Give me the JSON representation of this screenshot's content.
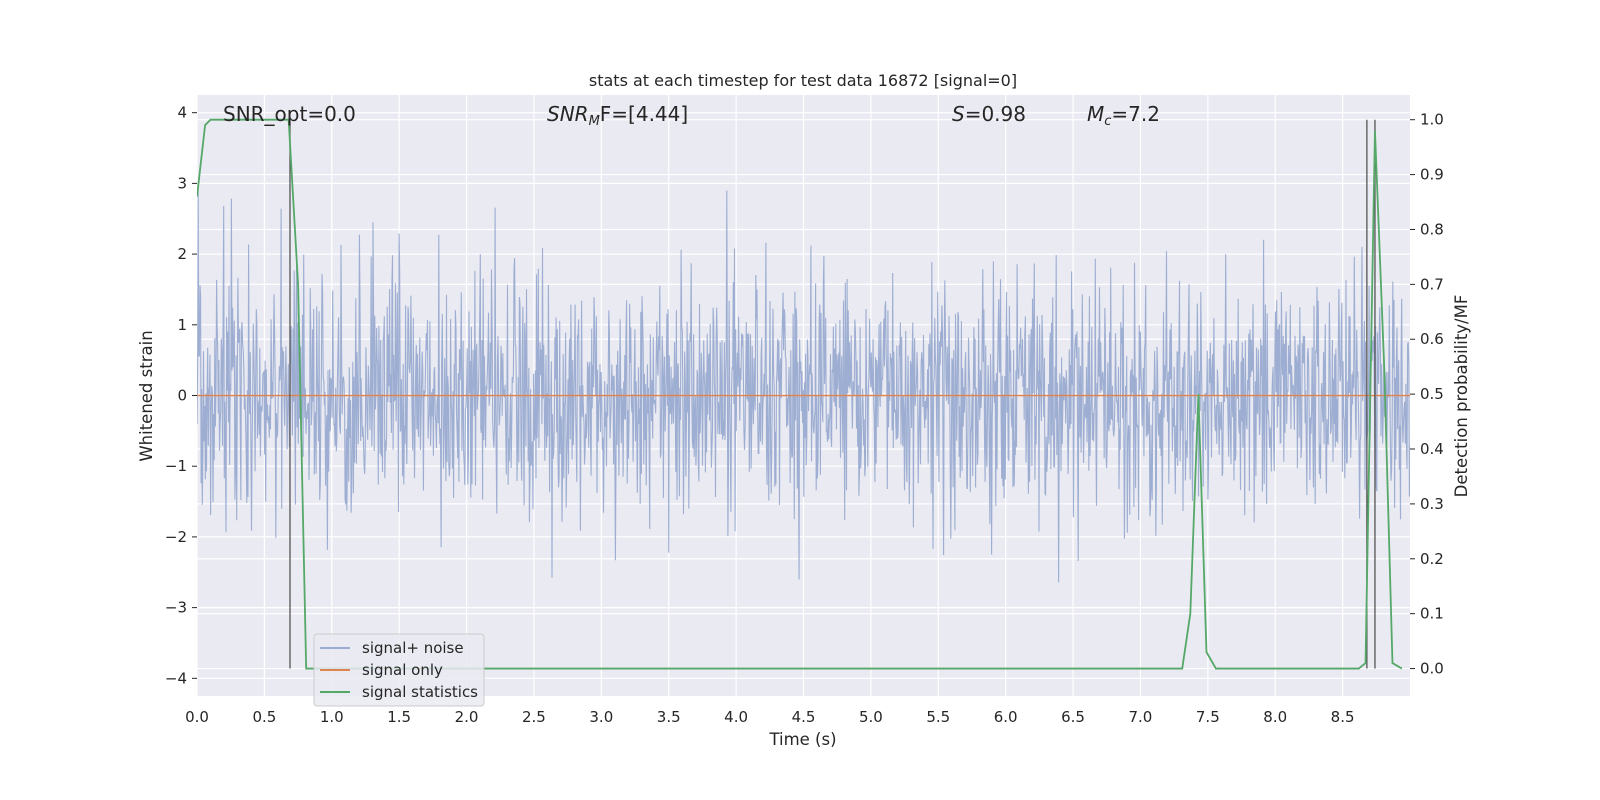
{
  "chart_data": {
    "type": "line",
    "title": "stats at each timestep for test data 16872 [signal=0]",
    "xlabel": "Time (s)",
    "ylabel": "Whitened strain",
    "ylabel_right": "Detection probability/MF",
    "xlim": [
      0.0,
      9.0
    ],
    "ylim": [
      -4.25,
      4.25
    ],
    "ylim_right": [
      -0.05,
      1.045
    ],
    "x_ticks": [
      "0.0",
      "0.5",
      "1.0",
      "1.5",
      "2.0",
      "2.5",
      "3.0",
      "3.5",
      "4.0",
      "4.5",
      "5.0",
      "5.5",
      "6.0",
      "6.5",
      "7.0",
      "7.5",
      "8.0",
      "8.5"
    ],
    "y_ticks": [
      "−4",
      "−3",
      "−2",
      "−1",
      "0",
      "1",
      "2",
      "3",
      "4"
    ],
    "y_right_ticks": [
      "0.0",
      "0.1",
      "0.2",
      "0.3",
      "0.4",
      "0.5",
      "0.6",
      "0.7",
      "0.8",
      "0.9",
      "1.0"
    ],
    "grid": true,
    "legend_position": "lower-left",
    "annotations": {
      "snr_opt": "SNR_opt=0.0",
      "snr_mf_base": "SNR",
      "snr_mf_sub": "M",
      "snr_mf_rest": "F=[4.44]",
      "s_var": "S",
      "s_rest": "=0.98",
      "mc_var": "M",
      "mc_sub": "c",
      "mc_rest": "=7.2"
    },
    "series": [
      {
        "name": "signal+ noise",
        "color": "#99abd0",
        "axis": "left",
        "sample_count": 2048,
        "noise_sigma": 0.85,
        "envelope_range": [
          -4.0,
          3.8
        ]
      },
      {
        "name": "signal only",
        "color": "#dd8452",
        "axis": "left",
        "x": [
          0.0,
          9.0
        ],
        "y": [
          0.0,
          0.0
        ]
      },
      {
        "name": "signal statistics",
        "color": "#55a868",
        "axis": "right",
        "x": [
          0.0,
          0.06,
          0.1,
          0.68,
          0.75,
          0.81,
          7.31,
          7.37,
          7.43,
          7.49,
          7.56,
          8.62,
          8.67,
          8.74,
          8.81,
          8.87,
          8.94
        ],
        "y": [
          0.86,
          0.99,
          1.0,
          1.0,
          0.7,
          0.0,
          0.0,
          0.1,
          0.5,
          0.03,
          0.0,
          0.0,
          0.01,
          0.98,
          0.54,
          0.01,
          0.0
        ]
      }
    ],
    "vertical_lines": {
      "color": "#555555",
      "x": [
        0.69,
        8.68,
        8.74
      ]
    }
  }
}
